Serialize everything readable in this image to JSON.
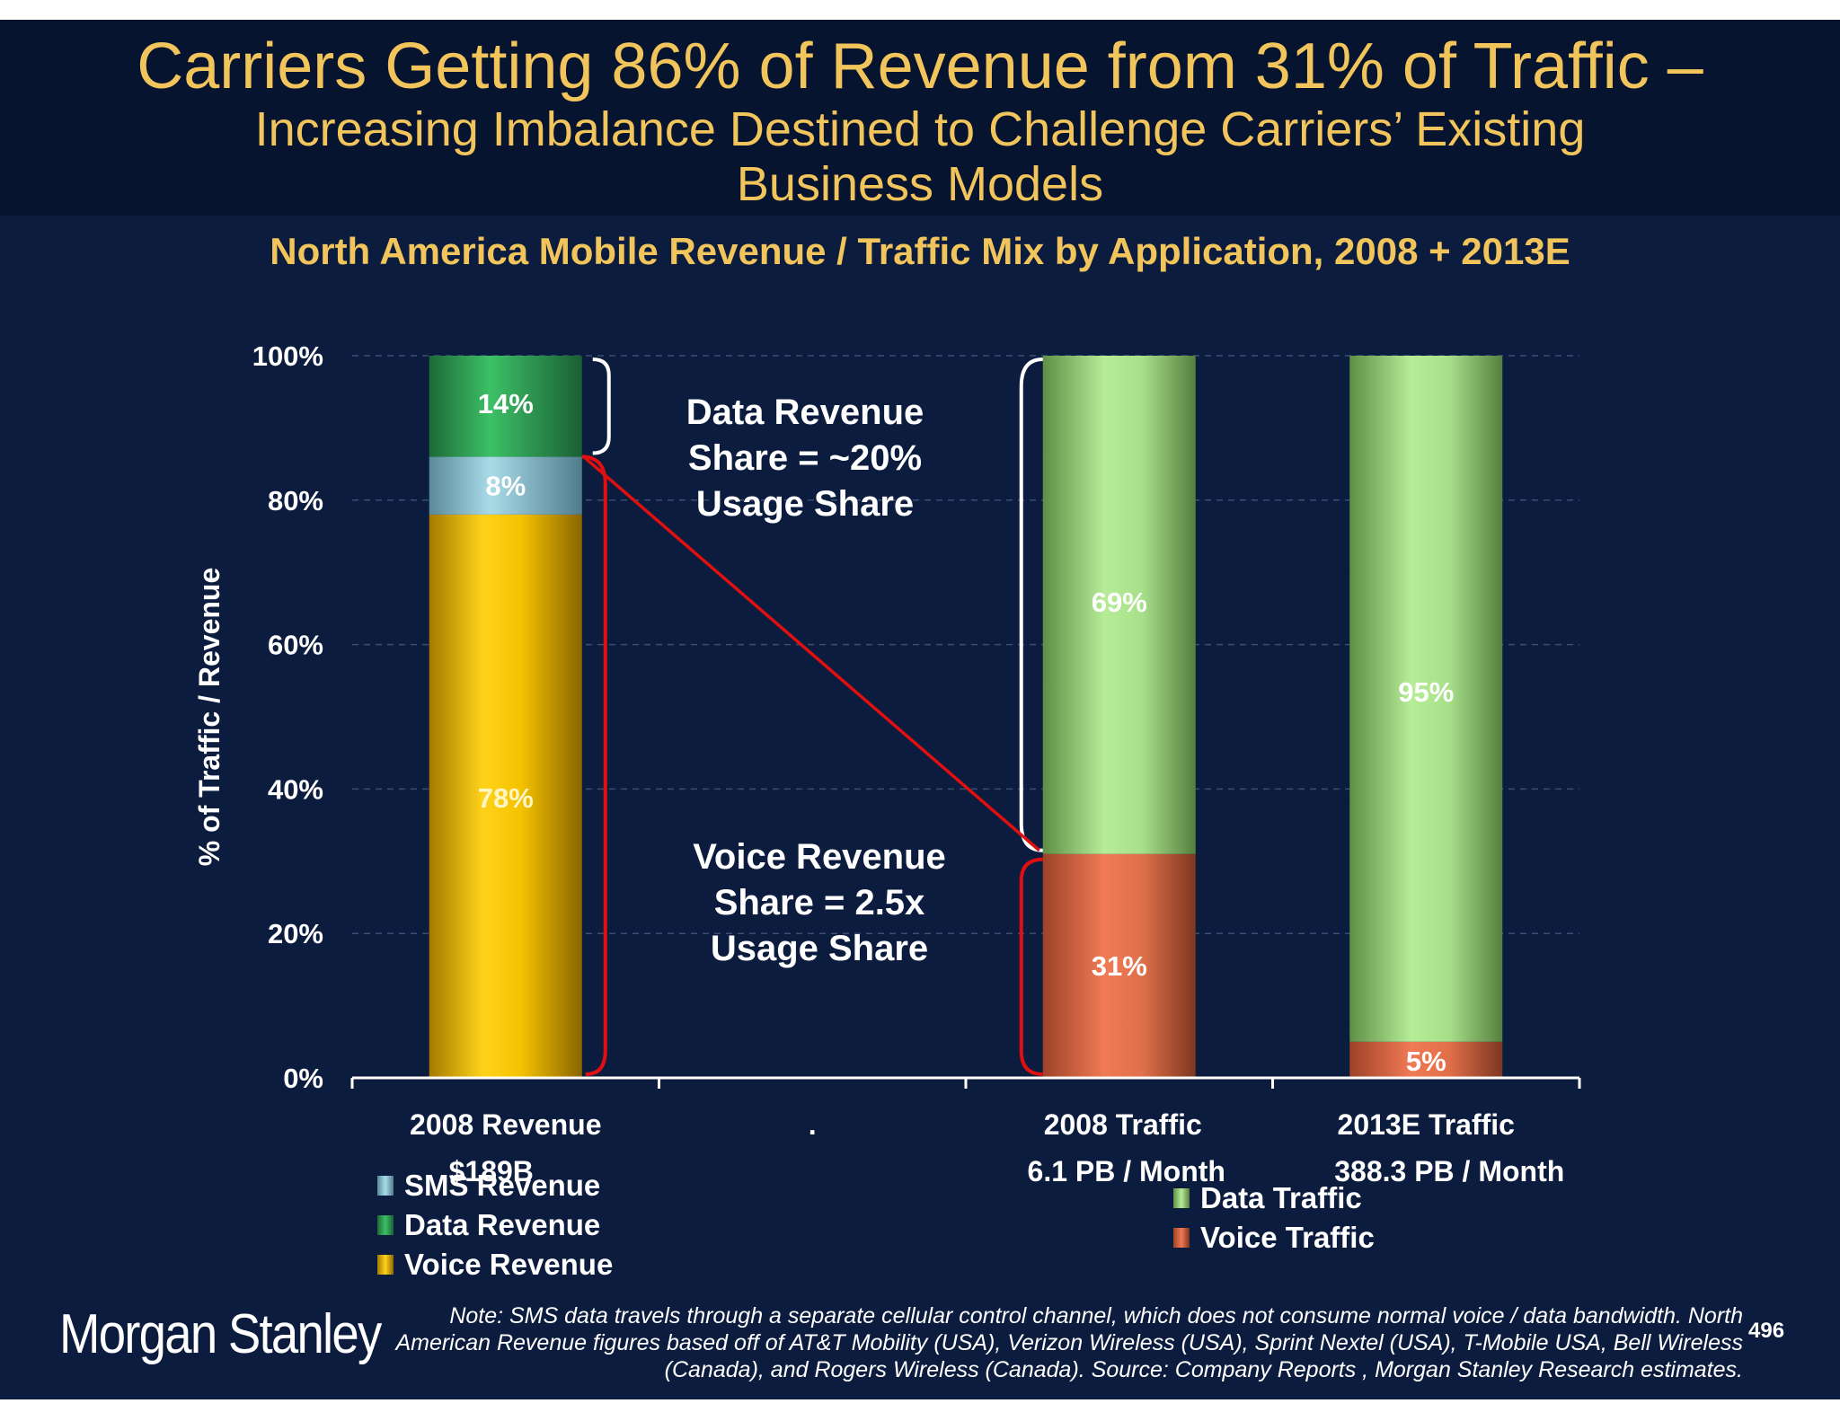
{
  "title": {
    "main": "Carriers Getting 86% of Revenue from 31% of Traffic –",
    "sub_line1": "Increasing Imbalance Destined to Challenge Carriers’ Existing",
    "sub_line2": "Business Models"
  },
  "chart_data": {
    "type": "bar",
    "stacked": true,
    "title": "North America Mobile Revenue / Traffic Mix by Application, 2008 + 2013E",
    "ylabel": "% of Traffic / Revenue",
    "ylim": [
      0,
      100
    ],
    "yticks": [
      "0%",
      "20%",
      "40%",
      "60%",
      "80%",
      "100%"
    ],
    "grid": true,
    "categories": [
      {
        "label": "2008 Revenue",
        "sublabel": "$189B"
      },
      {
        "label": ".",
        "sublabel": ""
      },
      {
        "label": "2008 Traffic",
        "sublabel": "6.1 PB / Month"
      },
      {
        "label": "2013E Traffic",
        "sublabel": "388.3 PB / Month"
      }
    ],
    "series": [
      {
        "name": "Voice Revenue",
        "values": [
          78,
          null,
          null,
          null
        ],
        "labels": [
          "78%",
          "",
          "",
          ""
        ],
        "color": "#f5c200"
      },
      {
        "name": "SMS Revenue",
        "values": [
          8,
          null,
          null,
          null
        ],
        "labels": [
          "8%",
          "",
          "",
          ""
        ],
        "color": "#8fc8d8"
      },
      {
        "name": "Data Revenue",
        "values": [
          14,
          null,
          null,
          null
        ],
        "labels": [
          "14%",
          "",
          "",
          ""
        ],
        "color": "#2e9e52"
      },
      {
        "name": "Voice Traffic",
        "values": [
          null,
          null,
          31,
          5
        ],
        "labels": [
          "",
          "",
          "31%",
          "5%"
        ],
        "color": "#e0704a"
      },
      {
        "name": "Data Traffic",
        "values": [
          null,
          null,
          69,
          95
        ],
        "labels": [
          "",
          "",
          "69%",
          "95%"
        ],
        "color": "#a8e08a"
      }
    ],
    "annotations": {
      "data_revenue": [
        "Data Revenue",
        "Share = ~20%",
        "Usage Share"
      ],
      "voice_revenue": [
        "Voice Revenue",
        "Share = 2.5x",
        "Usage Share"
      ]
    },
    "legend_left": [
      "SMS Revenue",
      "Data Revenue",
      "Voice Revenue"
    ],
    "legend_right": [
      "Data Traffic",
      "Voice Traffic"
    ]
  },
  "footer": {
    "logo": "Morgan Stanley",
    "note": "Note: SMS data travels through a separate cellular control channel, which does not consume normal voice / data bandwidth. North American Revenue figures based off of AT&T Mobility (USA), Verizon Wireless (USA), Sprint Nextel (USA), T-Mobile USA, Bell Wireless (Canada), and Rogers Wireless (Canada). Source: Company Reports , Morgan Stanley Research estimates.",
    "page": "496"
  }
}
